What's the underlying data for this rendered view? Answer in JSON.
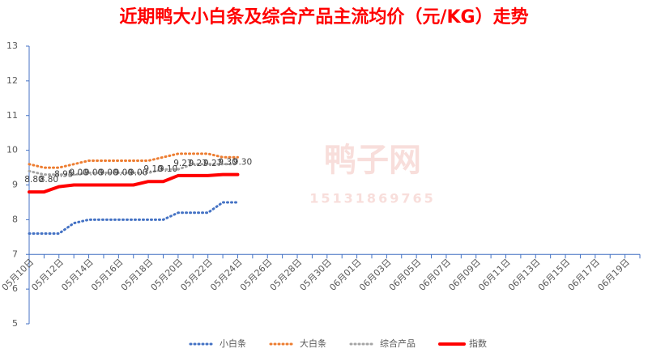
{
  "chart_data": {
    "type": "line",
    "title": "近期鸭大小白条及综合产品主流均价（元/KG）走势",
    "watermark": [
      "鸭子网",
      "15131869765"
    ],
    "categories": [
      "05月10日",
      null,
      "05月12日",
      null,
      "05月14日",
      null,
      "05月16日",
      null,
      "05月18日",
      null,
      "05月20日",
      null,
      "05月22日",
      null,
      "05月24日",
      null,
      "05月26日",
      null,
      "05月28日",
      null,
      "05月30日",
      null,
      "06月01日",
      null,
      "06月03日",
      null,
      "06月05日",
      null,
      "06月07日",
      null,
      "06月09日",
      null,
      "06月11日",
      null,
      "06月13日",
      null,
      "06月15日",
      null,
      "06月17日",
      null,
      "06月19日",
      null
    ],
    "series": [
      {
        "name": "小白条",
        "color": "#4472c4",
        "style": "dotted",
        "values": [
          7.6,
          7.6,
          7.6,
          7.9,
          8.0,
          8.0,
          8.0,
          8.0,
          8.0,
          8.0,
          8.2,
          8.2,
          8.2,
          8.5,
          8.5,
          null,
          null,
          null,
          null,
          null,
          null,
          null,
          null,
          null,
          null,
          null,
          null,
          null,
          null,
          null,
          null,
          null,
          null,
          null,
          null,
          null,
          null,
          null,
          null,
          null,
          null,
          null
        ]
      },
      {
        "name": "大白条",
        "color": "#ed7d31",
        "style": "dotted",
        "values": [
          9.6,
          9.5,
          9.5,
          9.6,
          9.7,
          9.7,
          9.7,
          9.7,
          9.7,
          9.8,
          9.9,
          9.9,
          9.9,
          9.8,
          9.8,
          null,
          null,
          null,
          null,
          null,
          null,
          null,
          null,
          null,
          null,
          null,
          null,
          null,
          null,
          null,
          null,
          null,
          null,
          null,
          null,
          null,
          null,
          null,
          null,
          null,
          null,
          null
        ]
      },
      {
        "name": "综合产品",
        "color": "#a5a5a5",
        "style": "dotted",
        "values": [
          9.4,
          9.3,
          9.3,
          9.3,
          9.35,
          9.35,
          9.35,
          9.35,
          9.35,
          9.45,
          9.45,
          9.6,
          9.6,
          9.6,
          9.6,
          null,
          null,
          null,
          null,
          null,
          null,
          null,
          null,
          null,
          null,
          null,
          null,
          null,
          null,
          null,
          null,
          null,
          null,
          null,
          null,
          null,
          null,
          null,
          null,
          null,
          null,
          null
        ]
      },
      {
        "name": "指数",
        "color": "#ff0000",
        "style": "thick",
        "values": [
          8.8,
          8.8,
          8.95,
          9.0,
          9.0,
          9.0,
          9.0,
          9.0,
          9.1,
          9.1,
          9.27,
          9.27,
          9.27,
          9.3,
          9.3,
          null,
          null,
          null,
          null,
          null,
          null,
          null,
          null,
          null,
          null,
          null,
          null,
          null,
          null,
          null,
          null,
          null,
          null,
          null,
          null,
          null,
          null,
          null,
          null,
          null,
          null,
          null
        ],
        "value_labels": [
          "8.80",
          "8.80",
          "8.95",
          "9.00",
          "9.00",
          "9.00",
          "9.00",
          "9.00",
          "9.10",
          "9.10",
          "9.27",
          "9.27",
          "9.27",
          "9.30",
          "9.30",
          null,
          null,
          null,
          null,
          null,
          null,
          null,
          null,
          null,
          null,
          null,
          null,
          null,
          null,
          null,
          null,
          null,
          null,
          null,
          null,
          null,
          null,
          null,
          null,
          null,
          null,
          null
        ]
      }
    ],
    "ylim": [
      5,
      13
    ],
    "yticks": [
      5,
      6,
      7,
      8,
      9,
      10,
      11,
      12,
      13
    ],
    "xaxis_at": 7,
    "legend": "bottom",
    "grid": false
  }
}
